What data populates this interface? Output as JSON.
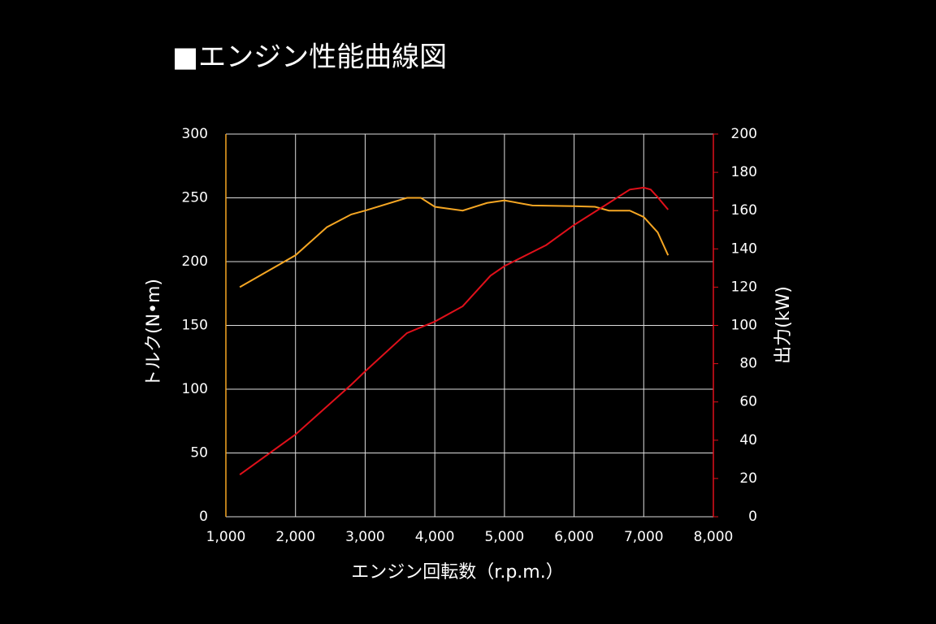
{
  "chart_data": {
    "type": "line",
    "title": "■エンジン性能曲線図",
    "xlabel": "エンジン回転数（r.p.m.）",
    "ylabel": "トルク(N•m)",
    "y2label": "出力(kW)",
    "xlim": [
      1000,
      8000
    ],
    "xticks": [
      {
        "value": 1000,
        "label": "1,000"
      },
      {
        "value": 2000,
        "label": "2,000"
      },
      {
        "value": 3000,
        "label": "3,000"
      },
      {
        "value": 4000,
        "label": "4,000"
      },
      {
        "value": 5000,
        "label": "5,000"
      },
      {
        "value": 6000,
        "label": "6,000"
      },
      {
        "value": 7000,
        "label": "7,000"
      },
      {
        "value": 8000,
        "label": "8,000"
      }
    ],
    "ylim": [
      0,
      300
    ],
    "yticks": [
      0,
      50,
      100,
      150,
      200,
      250,
      300
    ],
    "y2lim": [
      0,
      200
    ],
    "y2ticks": [
      0,
      20,
      40,
      60,
      80,
      100,
      120,
      140,
      160,
      180,
      200
    ],
    "grid": true,
    "series": [
      {
        "name": "トルク",
        "color": "#f5a623",
        "axis": "y",
        "x": [
          1200,
          2000,
          2450,
          2800,
          3000,
          3600,
          3800,
          4000,
          4400,
          4750,
          5000,
          5400,
          6000,
          6300,
          6500,
          6800,
          7000,
          7200,
          7350
        ],
        "values": [
          180,
          205,
          227,
          237,
          240,
          250,
          250,
          243,
          240,
          246,
          248,
          244,
          243.5,
          243,
          240,
          240,
          235,
          223,
          205
        ]
      },
      {
        "name": "出力",
        "color": "#e0101a",
        "axis": "y2",
        "x": [
          1200,
          2000,
          2800,
          3000,
          3600,
          4000,
          4400,
          4800,
          5000,
          5600,
          6000,
          6500,
          6800,
          7000,
          7100,
          7200,
          7350
        ],
        "values": [
          22,
          43,
          69,
          76,
          96,
          102,
          110,
          126,
          131,
          142,
          152.5,
          164,
          171,
          172,
          171,
          167,
          160.5
        ]
      }
    ]
  }
}
